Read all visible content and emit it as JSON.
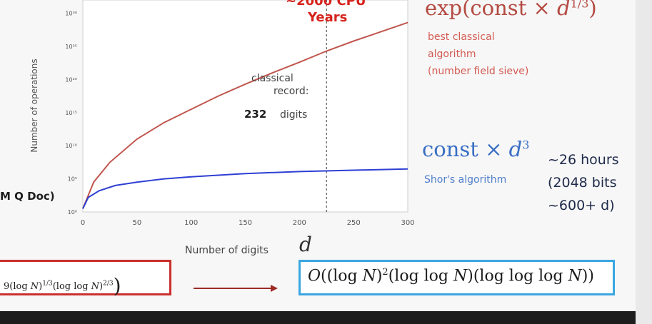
{
  "chart_data": {
    "type": "line",
    "xlabel": "Number of digits",
    "xlabel_symbol": "d",
    "ylabel": "Number of operations",
    "x_ticks": [
      "0",
      "50",
      "100",
      "150",
      "200",
      "250",
      "300"
    ],
    "y_ticks": [
      "10⁰",
      "10⁵",
      "10¹⁰",
      "10¹⁵",
      "10²⁰",
      "10²⁵",
      "10³⁰"
    ],
    "xlim": [
      0,
      300
    ],
    "ylim_log10": [
      0,
      32
    ],
    "series": [
      {
        "name": "best classical algorithm (number field sieve)",
        "color": "#c0564e",
        "x": [
          0,
          10,
          25,
          50,
          75,
          100,
          125,
          150,
          175,
          200,
          225,
          250,
          275,
          300
        ],
        "log10_y": [
          0.5,
          4.5,
          7.5,
          11.0,
          13.5,
          15.5,
          17.5,
          19.3,
          21.0,
          22.6,
          24.3,
          25.8,
          27.2,
          28.6
        ]
      },
      {
        "name": "Shor's algorithm",
        "color": "#2e3fd4",
        "x": [
          0,
          5,
          15,
          30,
          50,
          75,
          100,
          150,
          200,
          250,
          300
        ],
        "log10_y": [
          0.5,
          2.2,
          3.2,
          4.0,
          4.5,
          5.0,
          5.3,
          5.8,
          6.1,
          6.3,
          6.5
        ]
      }
    ],
    "marker_x": 225,
    "marker_note": [
      "classical",
      "record:",
      "232",
      "digits"
    ]
  },
  "top_note": {
    "line1": "~2000 CPU",
    "line2": "Years"
  },
  "classical": {
    "formula_prefix": "exp(const × ",
    "formula_var": "d",
    "formula_exp": "1/3",
    "formula_suffix": ")",
    "label": [
      "best classical",
      "algorithm",
      "(number field sieve)"
    ]
  },
  "quantum": {
    "formula_prefix": "const × ",
    "formula_var": "d",
    "formula_exp": "3",
    "label": "Shor's algorithm",
    "time_note": [
      "~26 hours",
      "(2048 bits",
      "~600+ d)"
    ]
  },
  "left_note": "M Q Doc)",
  "bottom": {
    "left_formula": "9(log N)^{1/3}(log log N)^{2/3})",
    "right_formula": "O((log N)² (log log N)(log log log N))",
    "left_border": "#c9302c",
    "right_border": "#3aa6e0",
    "arrow_color": "#9e2b25"
  }
}
